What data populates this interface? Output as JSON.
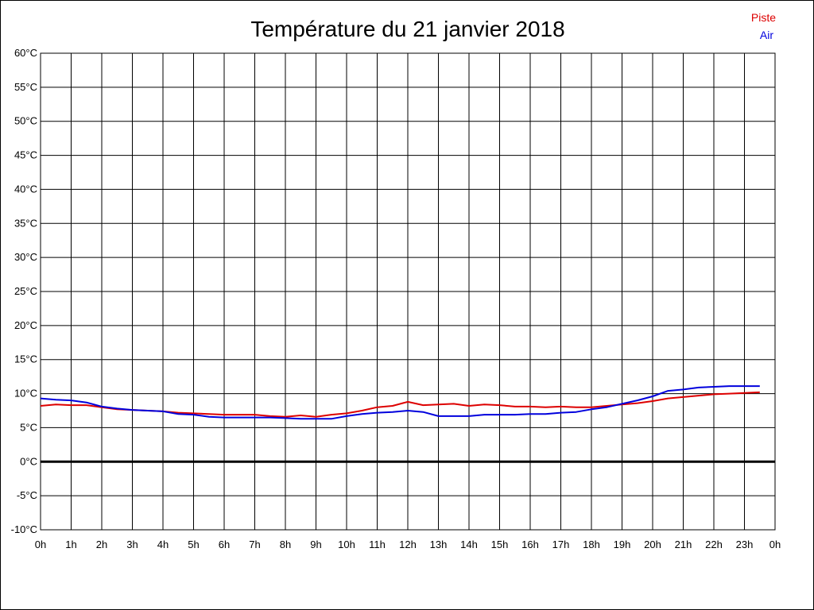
{
  "chart_data": {
    "type": "line",
    "title": "Température du 21 janvier 2018",
    "xlabel": "",
    "ylabel": "",
    "x_ticks": [
      "0h",
      "1h",
      "2h",
      "3h",
      "4h",
      "5h",
      "6h",
      "7h",
      "8h",
      "9h",
      "10h",
      "11h",
      "12h",
      "13h",
      "14h",
      "15h",
      "16h",
      "17h",
      "18h",
      "19h",
      "20h",
      "21h",
      "22h",
      "23h",
      "0h"
    ],
    "y_ticks": [
      "60°C",
      "55°C",
      "50°C",
      "45°C",
      "40°C",
      "35°C",
      "30°C",
      "25°C",
      "20°C",
      "15°C",
      "10°C",
      "5°C",
      "0°C",
      "-5°C",
      "-10°C"
    ],
    "xlim": [
      0,
      24
    ],
    "ylim": [
      -10,
      60
    ],
    "grid": true,
    "legend_position": "top-right",
    "zero_line": true,
    "series": [
      {
        "name": "Piste",
        "color": "#dd0000",
        "points": [
          [
            0,
            8.2
          ],
          [
            0.5,
            8.4
          ],
          [
            1,
            8.3
          ],
          [
            1.5,
            8.3
          ],
          [
            2,
            8.0
          ],
          [
            2.5,
            7.7
          ],
          [
            3,
            7.6
          ],
          [
            3.5,
            7.5
          ],
          [
            4,
            7.4
          ],
          [
            4.5,
            7.2
          ],
          [
            5,
            7.1
          ],
          [
            5.5,
            7.0
          ],
          [
            6,
            6.9
          ],
          [
            6.5,
            6.9
          ],
          [
            7,
            6.9
          ],
          [
            7.5,
            6.7
          ],
          [
            8,
            6.6
          ],
          [
            8.5,
            6.8
          ],
          [
            9,
            6.6
          ],
          [
            9.5,
            6.9
          ],
          [
            10,
            7.1
          ],
          [
            10.5,
            7.5
          ],
          [
            11,
            8.0
          ],
          [
            11.5,
            8.2
          ],
          [
            12,
            8.8
          ],
          [
            12.5,
            8.3
          ],
          [
            13,
            8.4
          ],
          [
            13.5,
            8.5
          ],
          [
            14,
            8.2
          ],
          [
            14.5,
            8.4
          ],
          [
            15,
            8.3
          ],
          [
            15.5,
            8.1
          ],
          [
            16,
            8.1
          ],
          [
            16.5,
            8.0
          ],
          [
            17,
            8.1
          ],
          [
            17.5,
            8.0
          ],
          [
            18,
            8.0
          ],
          [
            18.5,
            8.2
          ],
          [
            19,
            8.4
          ],
          [
            19.5,
            8.6
          ],
          [
            20,
            8.9
          ],
          [
            20.5,
            9.3
          ],
          [
            21,
            9.5
          ],
          [
            21.5,
            9.7
          ],
          [
            22,
            9.9
          ],
          [
            22.5,
            10.0
          ],
          [
            23,
            10.1
          ],
          [
            23.5,
            10.2
          ]
        ]
      },
      {
        "name": "Air",
        "color": "#0000dd",
        "points": [
          [
            0,
            9.3
          ],
          [
            0.5,
            9.1
          ],
          [
            1,
            9.0
          ],
          [
            1.5,
            8.7
          ],
          [
            2,
            8.1
          ],
          [
            2.5,
            7.8
          ],
          [
            3,
            7.6
          ],
          [
            3.5,
            7.5
          ],
          [
            4,
            7.4
          ],
          [
            4.5,
            7.0
          ],
          [
            5,
            6.9
          ],
          [
            5.5,
            6.6
          ],
          [
            6,
            6.5
          ],
          [
            6.5,
            6.5
          ],
          [
            7,
            6.5
          ],
          [
            7.5,
            6.5
          ],
          [
            8,
            6.4
          ],
          [
            8.5,
            6.3
          ],
          [
            9,
            6.3
          ],
          [
            9.5,
            6.3
          ],
          [
            10,
            6.7
          ],
          [
            10.5,
            7.0
          ],
          [
            11,
            7.2
          ],
          [
            11.5,
            7.3
          ],
          [
            12,
            7.5
          ],
          [
            12.5,
            7.3
          ],
          [
            13,
            6.7
          ],
          [
            13.5,
            6.7
          ],
          [
            14,
            6.7
          ],
          [
            14.5,
            6.9
          ],
          [
            15,
            6.9
          ],
          [
            15.5,
            6.9
          ],
          [
            16,
            7.0
          ],
          [
            16.5,
            7.0
          ],
          [
            17,
            7.2
          ],
          [
            17.5,
            7.3
          ],
          [
            18,
            7.7
          ],
          [
            18.5,
            8.0
          ],
          [
            19,
            8.5
          ],
          [
            19.5,
            9.0
          ],
          [
            20,
            9.6
          ],
          [
            20.5,
            10.4
          ],
          [
            21,
            10.6
          ],
          [
            21.5,
            10.9
          ],
          [
            22,
            11.0
          ],
          [
            22.5,
            11.1
          ],
          [
            23,
            11.1
          ],
          [
            23.5,
            11.1
          ]
        ]
      }
    ]
  }
}
